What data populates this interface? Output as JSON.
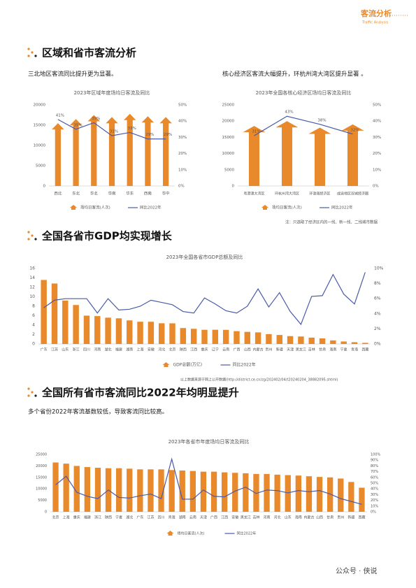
{
  "header": {
    "title": "客流分析",
    "subtitle": "Traffic Analysis"
  },
  "sections": [
    {
      "title": "区域和省市客流分析",
      "texts": [
        "三北地区客流同比提升更为显著。",
        "核心经济区客流大幅提升，环杭州湾大湾区提升显著 。"
      ]
    },
    {
      "title": "全国各省市GDP均实现增长"
    },
    {
      "title": "全国所有省市客流同比2022年均明显提升",
      "texts": [
        "多个省份2022年客流基数较低，导致客流同比较高。"
      ]
    }
  ],
  "footer": "公众号 · 侠说",
  "chart_data": [
    {
      "type": "combo",
      "title": "2023年区域年度场均日客流及同比",
      "categories": [
        "西北",
        "东北",
        "华北",
        "华南",
        "华东",
        "西南",
        "华中"
      ],
      "ylim": [
        0,
        20000
      ],
      "yticks": [
        0,
        5000,
        10000,
        15000,
        20000
      ],
      "y2lim": [
        0,
        50
      ],
      "y2ticks": [
        {
          "value": 0,
          "label": "0%"
        },
        {
          "value": 10,
          "label": "10%"
        },
        {
          "value": 20,
          "label": "20%"
        },
        {
          "value": 30,
          "label": "30%"
        },
        {
          "value": 40,
          "label": "40%"
        },
        {
          "value": 50,
          "label": "50%"
        }
      ],
      "grid": false,
      "series": [
        {
          "name": "场均日客流(人次)",
          "type": "bar",
          "color": "#e8892b",
          "values": [
            15500,
            16500,
            17500,
            17000,
            17800,
            17200,
            17000
          ]
        },
        {
          "name": "同比2022年",
          "type": "line",
          "axis": "y2",
          "color": "#4b5aa8",
          "values": [
            41,
            35,
            39,
            31,
            33,
            29,
            29
          ],
          "value_labels": [
            "41%",
            "35%",
            "39%",
            "31%",
            "33%",
            "29%",
            "29%"
          ]
        }
      ]
    },
    {
      "type": "combo",
      "title": "2023年全国各核心经济区场均日客流及同比",
      "categories": [
        "粤港澳大湾区",
        "环杭州湾大湾区",
        "环渤海经济区",
        "成渝地区双城经济圈"
      ],
      "ylim": [
        0,
        25000
      ],
      "yticks": [
        0,
        5000,
        10000,
        15000,
        20000,
        25000
      ],
      "y2lim": [
        0,
        50
      ],
      "y2ticks": [
        {
          "value": 0,
          "label": "0%"
        },
        {
          "value": 10,
          "label": "10%"
        },
        {
          "value": 20,
          "label": "20%"
        },
        {
          "value": 30,
          "label": "30%"
        },
        {
          "value": 40,
          "label": "40%"
        },
        {
          "value": 50,
          "label": "50%"
        }
      ],
      "grid": false,
      "note": "注：只选取了经济区内的一线、新一线、二线城市数据",
      "series": [
        {
          "name": "场均日客流(人次)",
          "type": "bar",
          "color": "#e8892b",
          "values": [
            18500,
            20000,
            18000,
            19000
          ]
        },
        {
          "name": "同比2022年",
          "type": "line",
          "axis": "y2",
          "color": "#4b5aa8",
          "values": [
            31,
            43,
            38,
            32
          ],
          "value_labels": [
            "31%",
            "43%",
            "38%",
            "32%"
          ]
        }
      ]
    },
    {
      "type": "combo",
      "title": "2023年全国各省市GDP总额及同比",
      "categories": [
        "广东",
        "江苏",
        "山东",
        "浙江",
        "四川",
        "河南",
        "湖北",
        "福建",
        "湖南",
        "上海",
        "安徽",
        "河北",
        "北京",
        "陕西",
        "江西",
        "重庆",
        "辽宁",
        "云南",
        "广西",
        "山西",
        "内蒙古",
        "贵州",
        "新疆",
        "天津",
        "黑龙江",
        "吉林",
        "甘肃",
        "海南",
        "宁夏",
        "青海",
        "西藏"
      ],
      "ylim": [
        0,
        16
      ],
      "yticks": [
        0,
        2,
        4,
        6,
        8,
        10,
        12,
        14,
        16
      ],
      "y2lim": [
        0,
        10
      ],
      "y2ticks": [
        {
          "value": 0,
          "label": "0%"
        },
        {
          "value": 2,
          "label": "2%"
        },
        {
          "value": 4,
          "label": "4%"
        },
        {
          "value": 6,
          "label": "6%"
        },
        {
          "value": 8,
          "label": "8%"
        },
        {
          "value": 10,
          "label": "10%"
        }
      ],
      "grid": false,
      "source": "以上数据来源于网上公开数据(http://district.ce.cn/zg/202402/04/t20240204_38882095.shtml)",
      "series": [
        {
          "name": "GDP总额(万亿)",
          "type": "bar",
          "color": "#e8892b",
          "values": [
            13.57,
            12.82,
            9.21,
            8.26,
            6.01,
            5.91,
            5.58,
            5.44,
            5.0,
            4.72,
            4.71,
            4.39,
            4.38,
            3.38,
            3.22,
            3.01,
            3.02,
            3.0,
            2.72,
            2.57,
            2.46,
            2.09,
            1.91,
            1.67,
            1.59,
            1.35,
            1.19,
            0.76,
            0.53,
            0.38,
            0.24
          ]
        },
        {
          "name": "同比2022年",
          "type": "line",
          "axis": "y2",
          "color": "#4b5aa8",
          "values": [
            4.8,
            5.8,
            6.0,
            6.0,
            6.0,
            4.1,
            6.0,
            4.5,
            4.6,
            5.0,
            5.8,
            5.5,
            5.2,
            4.3,
            4.1,
            6.1,
            5.3,
            4.4,
            4.1,
            5.0,
            7.3,
            4.9,
            6.8,
            4.3,
            2.6,
            6.3,
            6.4,
            9.2,
            6.6,
            5.3,
            9.5
          ]
        }
      ]
    },
    {
      "type": "combo",
      "title": "2023年各省市年度场均日客流及同比",
      "categories": [
        "北京",
        "上海",
        "重庆",
        "福建",
        "浙江",
        "陕西",
        "宁夏",
        "湖北",
        "广东",
        "江苏",
        "四川",
        "青海",
        "湖南",
        "云南",
        "天津",
        "广西",
        "江西",
        "安徽",
        "黑龙江",
        "吉林",
        "河南",
        "河北",
        "山东",
        "海南",
        "内蒙古",
        "山西",
        "甘肃",
        "贵州",
        "新疆",
        "西藏"
      ],
      "ylim": [
        0,
        25000
      ],
      "yticks": [
        0,
        5000,
        10000,
        15000,
        20000,
        25000
      ],
      "y2lim": [
        0,
        100
      ],
      "y2ticks": [
        {
          "value": 0,
          "label": "0%"
        },
        {
          "value": 10,
          "label": "10%"
        },
        {
          "value": 20,
          "label": "20%"
        },
        {
          "value": 30,
          "label": "30%"
        },
        {
          "value": 40,
          "label": "40%"
        },
        {
          "value": 50,
          "label": "50%"
        },
        {
          "value": 60,
          "label": "60%"
        },
        {
          "value": 70,
          "label": "70%"
        },
        {
          "value": 80,
          "label": "80%"
        },
        {
          "value": 90,
          "label": "90%"
        },
        {
          "value": 100,
          "label": "100%"
        }
      ],
      "grid": false,
      "series": [
        {
          "name": "场均日客流(人次)",
          "type": "bar",
          "color": "#e8892b",
          "values": [
            21500,
            21000,
            20000,
            19500,
            19200,
            19000,
            19000,
            18800,
            18500,
            18500,
            18500,
            18200,
            18000,
            17800,
            17500,
            17500,
            17200,
            17000,
            16800,
            16500,
            16500,
            16200,
            16000,
            15800,
            15500,
            15200,
            15000,
            14500,
            13000,
            10500
          ]
        },
        {
          "name": "同比2022年",
          "type": "line",
          "axis": "y2",
          "color": "#4b5aa8",
          "values": [
            47,
            62,
            34,
            27,
            23,
            38,
            25,
            24,
            28,
            31,
            23,
            92,
            22,
            22,
            38,
            27,
            26,
            36,
            43,
            32,
            38,
            37,
            33,
            37,
            35,
            37,
            31,
            23,
            18,
            13
          ]
        }
      ]
    }
  ]
}
